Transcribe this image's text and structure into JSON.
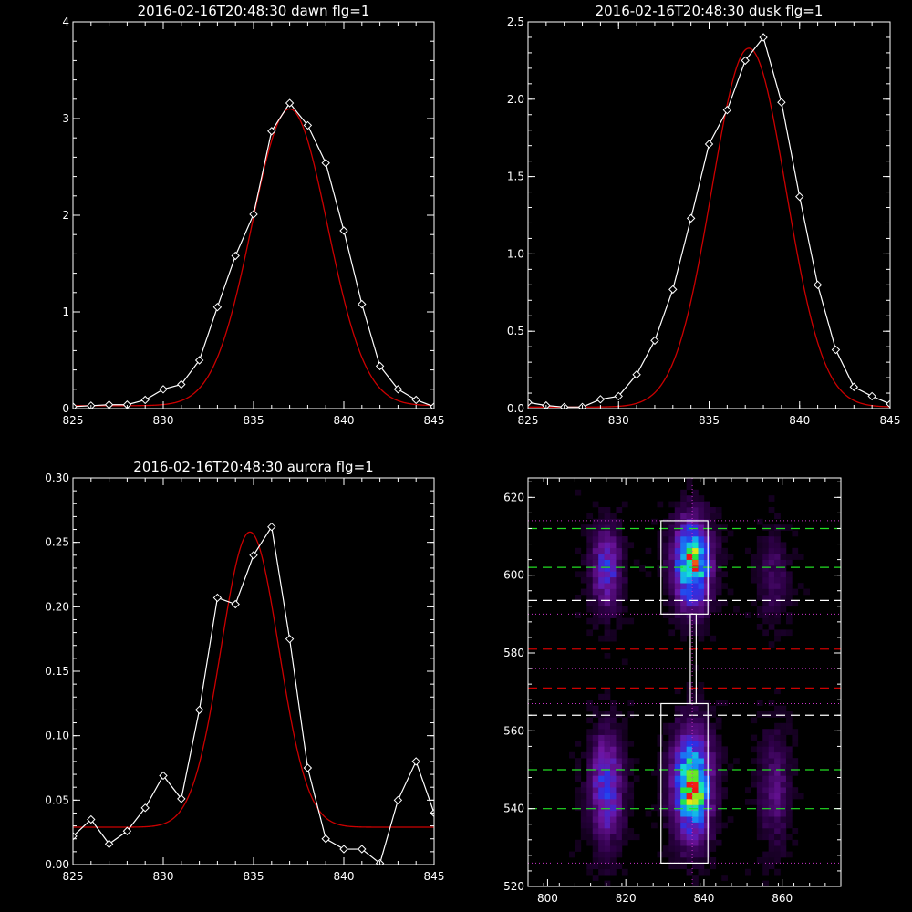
{
  "colors": {
    "background": "#000000",
    "axes": "#ffffff",
    "data_line": "#ffffff",
    "fit_line": "#cc0000",
    "green_dash": "#22dd22",
    "white_dash": "#ffffff",
    "red_dash": "#cc0000",
    "dotted": "#cc33cc"
  },
  "chart_data": [
    {
      "type": "line",
      "title": "2016-02-16T20:48:30 dawn flg=1",
      "xlim": [
        825,
        845
      ],
      "ylim": [
        0,
        4
      ],
      "x_ticks": [
        825,
        830,
        835,
        840,
        845
      ],
      "x_tick_labels": [
        "825",
        "830",
        "835",
        "840",
        "845"
      ],
      "y_ticks": [
        0,
        1,
        2,
        3,
        4
      ],
      "y_tick_labels": [
        "0",
        "1",
        "2",
        "3",
        "4"
      ],
      "series": [
        {
          "role": "data",
          "marker": "diamond",
          "x": [
            825,
            826,
            827,
            828,
            829,
            830,
            831,
            832,
            833,
            834,
            835,
            836,
            837,
            838,
            839,
            840,
            841,
            842,
            843,
            844,
            845
          ],
          "y": [
            0.02,
            0.03,
            0.04,
            0.04,
            0.09,
            0.2,
            0.25,
            0.5,
            1.05,
            1.58,
            2.01,
            2.87,
            3.16,
            2.93,
            2.54,
            1.84,
            1.08,
            0.44,
            0.2,
            0.09,
            0.02
          ]
        },
        {
          "role": "fit",
          "fit": {
            "kind": "gaussian",
            "amplitude": 3.07,
            "center": 837.0,
            "sigma": 2.1,
            "offset": 0.03
          }
        }
      ]
    },
    {
      "type": "line",
      "title": "2016-02-16T20:48:30 dusk flg=1",
      "xlim": [
        825,
        845
      ],
      "ylim": [
        0,
        2.5
      ],
      "x_ticks": [
        825,
        830,
        835,
        840,
        845
      ],
      "x_tick_labels": [
        "825",
        "830",
        "835",
        "840",
        "845"
      ],
      "y_ticks": [
        0,
        0.5,
        1.0,
        1.5,
        2.0,
        2.5
      ],
      "y_tick_labels": [
        "0.0",
        "0.5",
        "1.0",
        "1.5",
        "2.0",
        "2.5"
      ],
      "series": [
        {
          "role": "data",
          "marker": "diamond",
          "x": [
            825,
            826,
            827,
            828,
            829,
            830,
            831,
            832,
            833,
            834,
            835,
            836,
            837,
            838,
            839,
            840,
            841,
            842,
            843,
            844,
            845
          ],
          "y": [
            0.04,
            0.02,
            0.01,
            0.01,
            0.06,
            0.08,
            0.22,
            0.44,
            0.77,
            1.23,
            1.71,
            1.93,
            2.25,
            2.4,
            1.98,
            1.37,
            0.8,
            0.38,
            0.14,
            0.08,
            0.03
          ]
        },
        {
          "role": "fit",
          "fit": {
            "kind": "gaussian",
            "amplitude": 2.32,
            "center": 837.2,
            "sigma": 2.05,
            "offset": 0.01
          }
        }
      ]
    },
    {
      "type": "line",
      "title": "2016-02-16T20:48:30 aurora flg=1",
      "xlim": [
        825,
        845
      ],
      "ylim": [
        0,
        0.3
      ],
      "x_ticks": [
        825,
        830,
        835,
        840,
        845
      ],
      "x_tick_labels": [
        "825",
        "830",
        "835",
        "840",
        "845"
      ],
      "y_ticks": [
        0,
        0.05,
        0.1,
        0.15,
        0.2,
        0.25,
        0.3
      ],
      "y_tick_labels": [
        "0.00",
        "0.05",
        "0.10",
        "0.15",
        "0.20",
        "0.25",
        "0.30"
      ],
      "series": [
        {
          "role": "data",
          "marker": "diamond",
          "x": [
            825,
            826,
            827,
            828,
            829,
            830,
            831,
            832,
            833,
            834,
            835,
            836,
            837,
            838,
            839,
            840,
            841,
            842,
            843,
            844,
            845
          ],
          "y": [
            0.022,
            0.035,
            0.016,
            0.026,
            0.044,
            0.069,
            0.051,
            0.12,
            0.207,
            0.202,
            0.24,
            0.262,
            0.175,
            0.075,
            0.02,
            0.012,
            0.012,
            0.001,
            0.05,
            0.08,
            0.04
          ]
        },
        {
          "role": "fit",
          "fit": {
            "kind": "gaussian",
            "amplitude": 0.229,
            "center": 834.8,
            "sigma": 1.6,
            "offset": 0.029
          }
        }
      ]
    },
    {
      "type": "heatmap",
      "title": "",
      "xlim": [
        795,
        875
      ],
      "ylim": [
        520,
        625
      ],
      "x_ticks": [
        800,
        820,
        840,
        860
      ],
      "x_tick_labels": [
        "800",
        "820",
        "840",
        "860"
      ],
      "y_ticks": [
        520,
        540,
        560,
        580,
        600,
        620
      ],
      "y_tick_labels": [
        "520",
        "540",
        "560",
        "580",
        "600",
        "620"
      ],
      "grid": {
        "x": [
          795,
          875
        ],
        "y": [
          520,
          625
        ],
        "dx": 1.5,
        "dy": 1.5
      },
      "blobs": [
        {
          "x": 837,
          "y": 603,
          "sx": 3.2,
          "sy": 7.5,
          "amp": 0.78
        },
        {
          "x": 837,
          "y": 605,
          "sx": 1.5,
          "sy": 2.0,
          "amp": 0.2
        },
        {
          "x": 837,
          "y": 546,
          "sx": 3.3,
          "sy": 9.0,
          "amp": 0.8
        },
        {
          "x": 837,
          "y": 544,
          "sx": 1.8,
          "sy": 2.2,
          "amp": 0.35
        },
        {
          "x": 815,
          "y": 602,
          "sx": 2.6,
          "sy": 7.0,
          "amp": 0.38
        },
        {
          "x": 815,
          "y": 545,
          "sx": 2.8,
          "sy": 9.5,
          "amp": 0.42
        },
        {
          "x": 858,
          "y": 600,
          "sx": 2.6,
          "sy": 8.0,
          "amp": 0.14
        },
        {
          "x": 858,
          "y": 545,
          "sx": 2.6,
          "sy": 9.5,
          "amp": 0.2
        }
      ],
      "boxes": [
        {
          "x0": 829,
          "x1": 841,
          "y0": 590,
          "y1": 614
        },
        {
          "x0": 836.5,
          "x1": 838,
          "y0": 567,
          "y1": 590
        },
        {
          "x0": 829,
          "x1": 841,
          "y0": 526,
          "y1": 567
        }
      ],
      "hlines": [
        {
          "y": 612,
          "style": "green-dash"
        },
        {
          "y": 602,
          "style": "green-dash"
        },
        {
          "y": 593.5,
          "style": "white-dash"
        },
        {
          "y": 581,
          "style": "red-dash"
        },
        {
          "y": 571,
          "style": "red-dash"
        },
        {
          "y": 564,
          "style": "white-dash"
        },
        {
          "y": 550,
          "style": "green-dash"
        },
        {
          "y": 540,
          "style": "green-dash"
        },
        {
          "y": 614,
          "style": "dotted"
        },
        {
          "y": 590,
          "style": "dotted"
        },
        {
          "y": 576,
          "style": "dotted"
        },
        {
          "y": 567,
          "style": "dotted"
        },
        {
          "y": 526,
          "style": "dotted"
        }
      ],
      "vlines": [
        {
          "x": 837,
          "style": "dotted"
        }
      ]
    }
  ]
}
